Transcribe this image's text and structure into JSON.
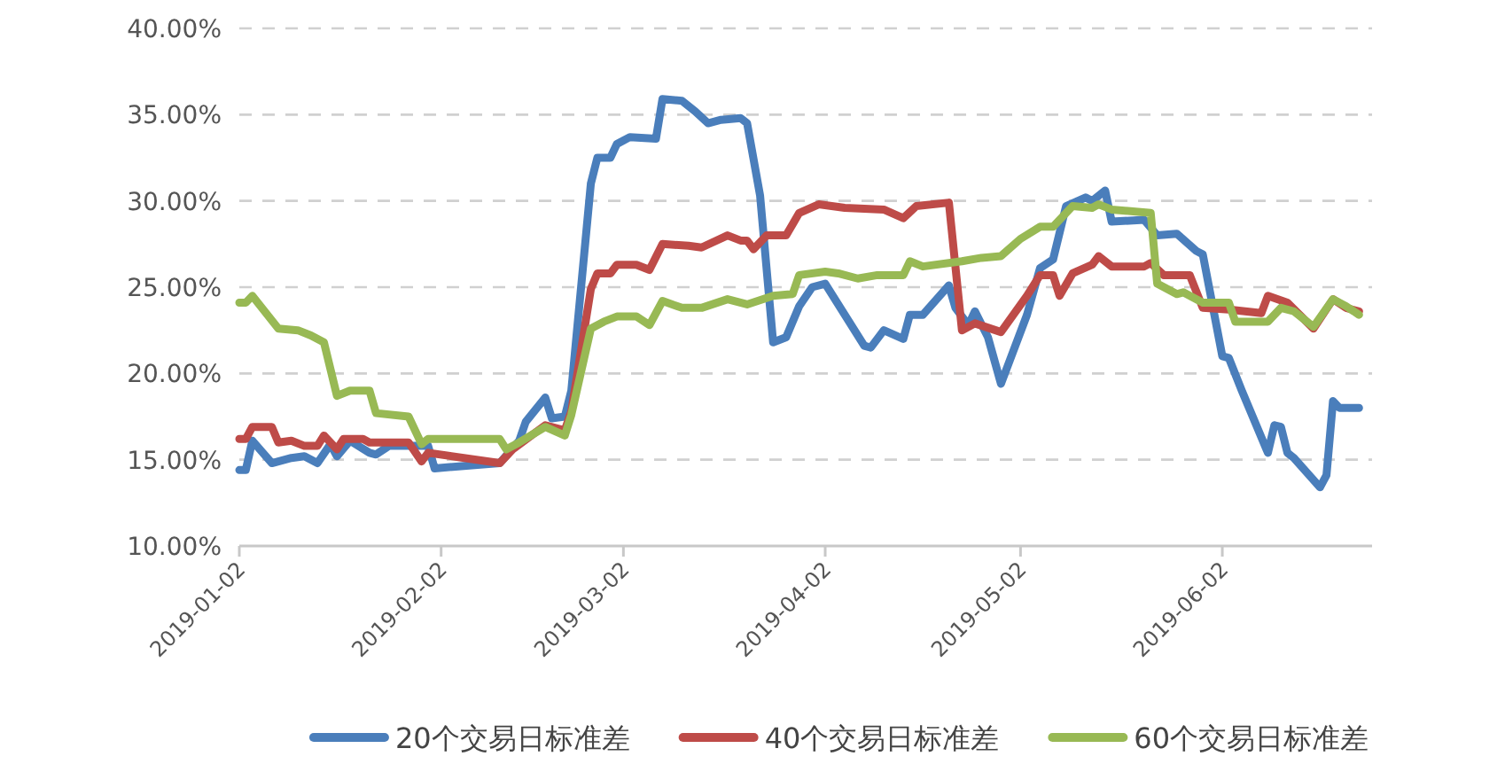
{
  "chart_data": {
    "type": "line",
    "legend": "bottom",
    "grid": "y",
    "marker": "none",
    "line_style": "solid",
    "xlim": [
      "2019-01-02",
      "2019-06-25"
    ],
    "xticks": [
      "2019-01-02",
      "2019-02-02",
      "2019-03-02",
      "2019-04-02",
      "2019-05-02",
      "2019-06-02"
    ],
    "ylim": [
      10,
      40
    ],
    "yticks": [
      {
        "value": 10,
        "label": "10.00%"
      },
      {
        "value": 15,
        "label": "15.00%"
      },
      {
        "value": 20,
        "label": "20.00%"
      },
      {
        "value": 25,
        "label": "25.00%"
      },
      {
        "value": 30,
        "label": "30.00%"
      },
      {
        "value": 35,
        "label": "35.00%"
      },
      {
        "value": 40,
        "label": "40.00%"
      }
    ],
    "series": [
      {
        "name": "20个交易日标准差",
        "color": "#4a7ebb",
        "x": [
          "2019-01-02",
          "2019-01-03",
          "2019-01-04",
          "2019-01-07",
          "2019-01-10",
          "2019-01-12",
          "2019-01-14",
          "2019-01-16",
          "2019-01-17",
          "2019-01-19",
          "2019-01-22",
          "2019-01-23",
          "2019-01-25",
          "2019-01-31",
          "2019-02-01",
          "2019-02-11",
          "2019-02-14",
          "2019-02-15",
          "2019-02-18",
          "2019-02-19",
          "2019-02-21",
          "2019-02-22",
          "2019-02-25",
          "2019-02-26",
          "2019-02-28",
          "2019-03-01",
          "2019-03-03",
          "2019-03-07",
          "2019-03-08",
          "2019-03-11",
          "2019-03-13",
          "2019-03-15",
          "2019-03-17",
          "2019-03-20",
          "2019-03-21",
          "2019-03-23",
          "2019-03-25",
          "2019-03-27",
          "2019-03-29",
          "2019-03-31",
          "2019-04-02",
          "2019-04-05",
          "2019-04-08",
          "2019-04-09",
          "2019-04-11",
          "2019-04-14",
          "2019-04-15",
          "2019-04-17",
          "2019-04-21",
          "2019-04-22",
          "2019-04-24",
          "2019-04-25",
          "2019-04-27",
          "2019-04-29",
          "2019-05-03",
          "2019-05-05",
          "2019-05-07",
          "2019-05-09",
          "2019-05-12",
          "2019-05-13",
          "2019-05-15",
          "2019-05-16",
          "2019-05-21",
          "2019-05-23",
          "2019-05-26",
          "2019-05-29",
          "2019-05-30",
          "2019-06-02",
          "2019-06-03",
          "2019-06-05",
          "2019-06-09",
          "2019-06-10",
          "2019-06-11",
          "2019-06-12",
          "2019-06-13",
          "2019-06-17",
          "2019-06-18",
          "2019-06-19",
          "2019-06-20",
          "2019-06-23"
        ],
        "values": [
          14.4,
          14.4,
          16.1,
          14.8,
          15.1,
          15.2,
          14.8,
          15.9,
          15.2,
          16.1,
          15.4,
          15.3,
          15.8,
          15.8,
          14.5,
          14.8,
          16.1,
          17.2,
          18.6,
          17.4,
          17.5,
          19,
          31,
          32.5,
          32.5,
          33.3,
          33.7,
          33.6,
          35.9,
          35.8,
          35.2,
          34.5,
          34.7,
          34.8,
          34.5,
          30.3,
          21.8,
          22.1,
          23.9,
          25,
          25.2,
          23.4,
          21.6,
          21.5,
          22.5,
          22,
          23.4,
          23.4,
          25.1,
          23.8,
          22.8,
          23.6,
          22.1,
          19.4,
          23.4,
          26.1,
          26.6,
          29.7,
          30.2,
          30,
          30.6,
          28.8,
          28.9,
          28,
          28.1,
          27.1,
          26.9,
          21,
          20.9,
          19,
          15.4,
          17,
          16.9,
          15.4,
          15.1,
          13.4,
          14.1,
          18.4,
          18,
          18
        ]
      },
      {
        "name": "40个交易日标准差",
        "color": "#be4b48",
        "x": [
          "2019-01-02",
          "2019-01-03",
          "2019-01-04",
          "2019-01-07",
          "2019-01-08",
          "2019-01-10",
          "2019-01-12",
          "2019-01-14",
          "2019-01-15",
          "2019-01-17",
          "2019-01-18",
          "2019-01-21",
          "2019-01-22",
          "2019-01-28",
          "2019-01-30",
          "2019-01-31",
          "2019-02-11",
          "2019-02-13",
          "2019-02-18",
          "2019-02-21",
          "2019-02-22",
          "2019-02-25",
          "2019-02-26",
          "2019-02-28",
          "2019-03-01",
          "2019-03-04",
          "2019-03-06",
          "2019-03-08",
          "2019-03-12",
          "2019-03-14",
          "2019-03-18",
          "2019-03-20",
          "2019-03-21",
          "2019-03-22",
          "2019-03-24",
          "2019-03-27",
          "2019-03-29",
          "2019-04-01",
          "2019-04-05",
          "2019-04-11",
          "2019-04-14",
          "2019-04-16",
          "2019-04-21",
          "2019-04-23",
          "2019-04-25",
          "2019-04-29",
          "2019-05-03",
          "2019-05-05",
          "2019-05-07",
          "2019-05-08",
          "2019-05-10",
          "2019-05-13",
          "2019-05-14",
          "2019-05-16",
          "2019-05-21",
          "2019-05-22",
          "2019-05-24",
          "2019-05-28",
          "2019-05-30",
          "2019-06-03",
          "2019-06-08",
          "2019-06-09",
          "2019-06-12",
          "2019-06-16",
          "2019-06-19",
          "2019-06-21",
          "2019-06-23"
        ],
        "values": [
          16.2,
          16.2,
          16.9,
          16.9,
          16,
          16.1,
          15.8,
          15.8,
          16.4,
          15.6,
          16.2,
          16.2,
          16,
          16,
          14.9,
          15.4,
          14.8,
          15.6,
          17,
          16.7,
          17.8,
          24.9,
          25.8,
          25.8,
          26.3,
          26.3,
          26,
          27.5,
          27.4,
          27.3,
          28,
          27.7,
          27.7,
          27.2,
          28,
          28,
          29.3,
          29.8,
          29.6,
          29.5,
          29,
          29.7,
          29.9,
          22.5,
          22.9,
          22.4,
          24.5,
          25.7,
          25.7,
          24.5,
          25.8,
          26.3,
          26.8,
          26.2,
          26.2,
          26.4,
          25.7,
          25.7,
          23.8,
          23.7,
          23.5,
          24.5,
          24.1,
          22.6,
          24.3,
          23.8,
          23.6
        ]
      },
      {
        "name": "60个交易日标准差",
        "color": "#98b954",
        "x": [
          "2019-01-02",
          "2019-01-03",
          "2019-01-04",
          "2019-01-08",
          "2019-01-11",
          "2019-01-13",
          "2019-01-15",
          "2019-01-17",
          "2019-01-19",
          "2019-01-22",
          "2019-01-23",
          "2019-01-28",
          "2019-01-30",
          "2019-01-31",
          "2019-02-11",
          "2019-02-12",
          "2019-02-14",
          "2019-02-18",
          "2019-02-21",
          "2019-02-22",
          "2019-02-25",
          "2019-02-27",
          "2019-03-01",
          "2019-03-04",
          "2019-03-06",
          "2019-03-08",
          "2019-03-11",
          "2019-03-14",
          "2019-03-18",
          "2019-03-21",
          "2019-03-25",
          "2019-03-28",
          "2019-03-29",
          "2019-04-02",
          "2019-04-04",
          "2019-04-07",
          "2019-04-10",
          "2019-04-14",
          "2019-04-15",
          "2019-04-17",
          "2019-04-23",
          "2019-04-26",
          "2019-04-29",
          "2019-05-02",
          "2019-05-05",
          "2019-05-07",
          "2019-05-10",
          "2019-05-13",
          "2019-05-14",
          "2019-05-16",
          "2019-05-22",
          "2019-05-23",
          "2019-05-26",
          "2019-05-27",
          "2019-05-30",
          "2019-06-03",
          "2019-06-04",
          "2019-06-09",
          "2019-06-11",
          "2019-06-13",
          "2019-06-16",
          "2019-06-19",
          "2019-06-21",
          "2019-06-23"
        ],
        "values": [
          24.1,
          24.1,
          24.5,
          22.6,
          22.5,
          22.2,
          21.8,
          18.7,
          19,
          19,
          17.7,
          17.5,
          15.9,
          16.2,
          16.2,
          15.6,
          16,
          16.9,
          16.4,
          17.6,
          22.6,
          23,
          23.3,
          23.3,
          22.8,
          24.2,
          23.8,
          23.8,
          24.3,
          24,
          24.5,
          24.6,
          25.7,
          25.9,
          25.8,
          25.5,
          25.7,
          25.7,
          26.5,
          26.2,
          26.5,
          26.7,
          26.8,
          27.8,
          28.5,
          28.5,
          29.7,
          29.6,
          29.8,
          29.5,
          29.3,
          25.2,
          24.6,
          24.7,
          24.1,
          24.1,
          23,
          23,
          23.8,
          23.6,
          22.7,
          24.3,
          23.9,
          23.4
        ]
      }
    ]
  }
}
